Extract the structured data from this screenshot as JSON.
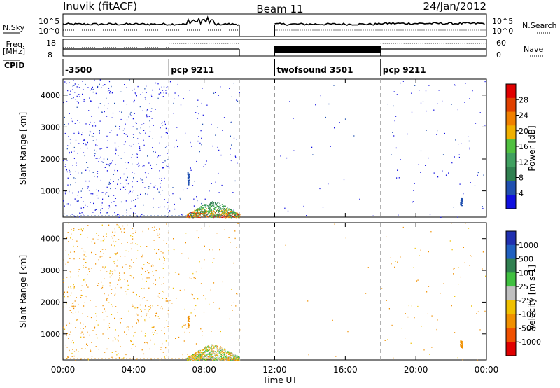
{
  "header": {
    "station": "Inuvik (fitACF)",
    "beam": "Beam 11",
    "date": "24/Jan/2012"
  },
  "noise_panel": {
    "left_label": "N.Sky",
    "right_label": "N.Search",
    "tick_high": "10^5",
    "tick_low": "10^0"
  },
  "freq_panel": {
    "left_label_line1": "Freq.",
    "left_label_line2": "[MHz]",
    "left_tick_high": "18",
    "left_tick_low": "8",
    "right_label": "Nave",
    "right_tick_high": "60",
    "right_tick_low": "0"
  },
  "cpid": {
    "label": "CPID",
    "segments": [
      {
        "text": "-3500",
        "start_hour": 0
      },
      {
        "text": "pcp 9211",
        "start_hour": 6
      },
      {
        "text": "twofsound 3501",
        "start_hour": 12
      },
      {
        "text": "pcp 9211",
        "start_hour": 18
      }
    ],
    "mode_boundaries_hours": [
      6,
      10,
      12,
      18
    ]
  },
  "colors": {
    "power_scale": [
      "#1010e0",
      "#2050b0",
      "#308050",
      "#40a060",
      "#50c040",
      "#f0b000",
      "#f08000",
      "#e04000",
      "#e00000"
    ],
    "velocity_scale": [
      "#2030b0",
      "#2060c0",
      "#308050",
      "#40c040",
      "#c0c0c0",
      "#f0c000",
      "#f09000",
      "#f05000",
      "#e00000"
    ]
  },
  "chart_data": [
    {
      "type": "heatmap",
      "name": "power",
      "ylabel": "Slant Range [km]",
      "ylim": [
        180,
        4500
      ],
      "yticks": [
        "1000",
        "2000",
        "3000",
        "4000"
      ],
      "colorbar_label": "Power [dB]",
      "colorbar_ticks": [
        "4",
        "8",
        "12",
        "16",
        "20",
        "24",
        "28"
      ],
      "clim": [
        0,
        30
      ]
    },
    {
      "type": "heatmap",
      "name": "velocity",
      "ylabel": "Slant Range [km]",
      "ylim": [
        180,
        4500
      ],
      "yticks": [
        "1000",
        "2000",
        "3000",
        "4000"
      ],
      "colorbar_label": "Velocity [m s-1]",
      "colorbar_ticks": [
        "1000",
        "500",
        "100",
        "25",
        "-25",
        "-100",
        "-500",
        "-1000"
      ]
    }
  ],
  "x_axis": {
    "label": "Time UT",
    "ticks": [
      "00:00",
      "04:00",
      "08:00",
      "12:00",
      "16:00",
      "20:00",
      "00:00"
    ],
    "xlim_hours": [
      0,
      24
    ]
  }
}
